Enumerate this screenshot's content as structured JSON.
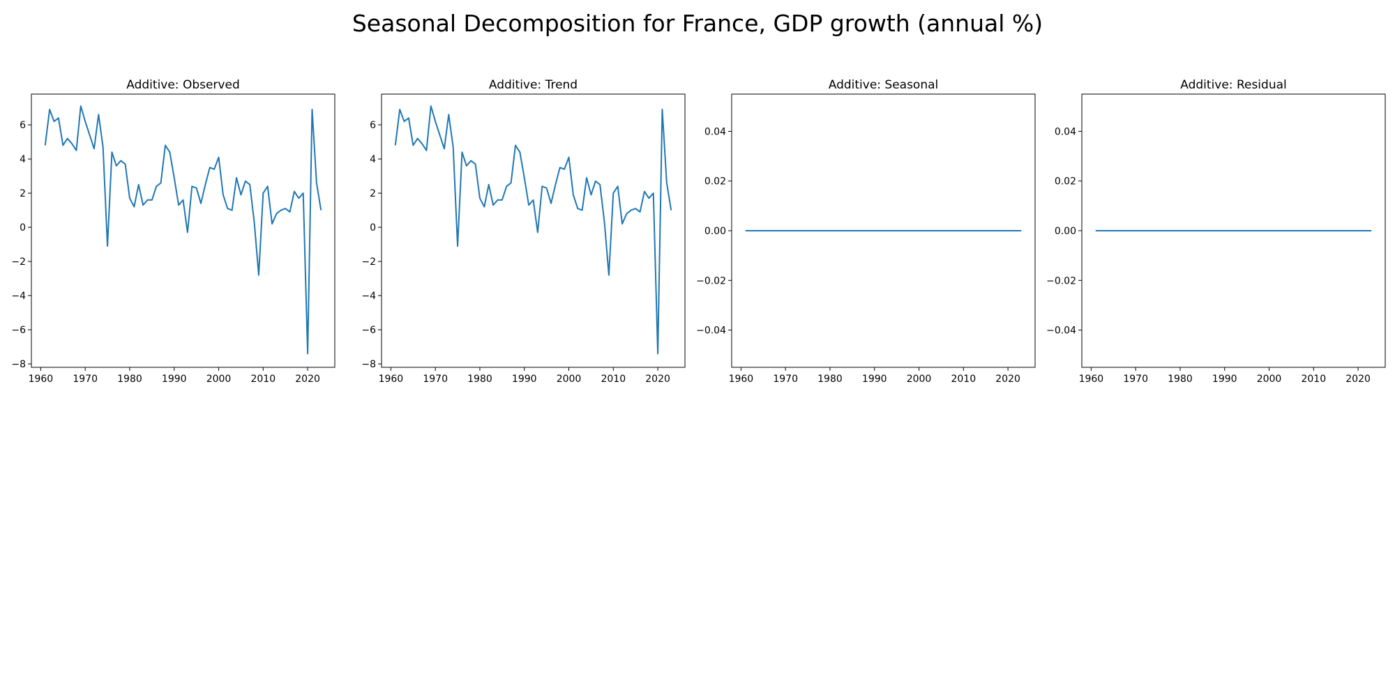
{
  "suptitle": "Seasonal Decomposition for France, GDP growth (annual %)",
  "chart_data": [
    {
      "type": "line",
      "title": "Additive: Observed",
      "xlim": [
        1957.9,
        2026.1
      ],
      "ylim": [
        -8.2,
        7.8
      ],
      "x_ticks": [
        1960,
        1970,
        1980,
        1990,
        2000,
        2010,
        2020
      ],
      "y_ticks": [
        -8,
        -6,
        -4,
        -2,
        0,
        2,
        4,
        6
      ],
      "color": "#1f77b4",
      "x": [
        1961,
        1962,
        1963,
        1964,
        1965,
        1966,
        1967,
        1968,
        1969,
        1970,
        1971,
        1972,
        1973,
        1974,
        1975,
        1976,
        1977,
        1978,
        1979,
        1980,
        1981,
        1982,
        1983,
        1984,
        1985,
        1986,
        1987,
        1988,
        1989,
        1990,
        1991,
        1992,
        1993,
        1994,
        1995,
        1996,
        1997,
        1998,
        1999,
        2000,
        2001,
        2002,
        2003,
        2004,
        2005,
        2006,
        2007,
        2008,
        2009,
        2010,
        2011,
        2012,
        2013,
        2014,
        2015,
        2016,
        2017,
        2018,
        2019,
        2020,
        2021,
        2022,
        2023
      ],
      "values": [
        4.8,
        6.9,
        6.2,
        6.4,
        4.8,
        5.2,
        4.9,
        4.5,
        7.1,
        6.2,
        5.4,
        4.6,
        6.6,
        4.7,
        -1.1,
        4.4,
        3.6,
        3.9,
        3.7,
        1.7,
        1.2,
        2.5,
        1.3,
        1.6,
        1.6,
        2.4,
        2.6,
        4.8,
        4.4,
        2.9,
        1.3,
        1.6,
        -0.3,
        2.4,
        2.3,
        1.4,
        2.5,
        3.5,
        3.4,
        4.1,
        1.9,
        1.1,
        1.0,
        2.9,
        1.9,
        2.7,
        2.5,
        0.3,
        -2.8,
        2.0,
        2.4,
        0.2,
        0.8,
        1.0,
        1.1,
        0.9,
        2.1,
        1.7,
        2.0,
        -7.4,
        6.9,
        2.6,
        1.0
      ]
    },
    {
      "type": "line",
      "title": "Additive: Trend",
      "xlim": [
        1957.9,
        2026.1
      ],
      "ylim": [
        -8.2,
        7.8
      ],
      "x_ticks": [
        1960,
        1970,
        1980,
        1990,
        2000,
        2010,
        2020
      ],
      "y_ticks": [
        -8,
        -6,
        -4,
        -2,
        0,
        2,
        4,
        6
      ],
      "color": "#1f77b4",
      "x": [
        1961,
        1962,
        1963,
        1964,
        1965,
        1966,
        1967,
        1968,
        1969,
        1970,
        1971,
        1972,
        1973,
        1974,
        1975,
        1976,
        1977,
        1978,
        1979,
        1980,
        1981,
        1982,
        1983,
        1984,
        1985,
        1986,
        1987,
        1988,
        1989,
        1990,
        1991,
        1992,
        1993,
        1994,
        1995,
        1996,
        1997,
        1998,
        1999,
        2000,
        2001,
        2002,
        2003,
        2004,
        2005,
        2006,
        2007,
        2008,
        2009,
        2010,
        2011,
        2012,
        2013,
        2014,
        2015,
        2016,
        2017,
        2018,
        2019,
        2020,
        2021,
        2022,
        2023
      ],
      "values": [
        4.8,
        6.9,
        6.2,
        6.4,
        4.8,
        5.2,
        4.9,
        4.5,
        7.1,
        6.2,
        5.4,
        4.6,
        6.6,
        4.7,
        -1.1,
        4.4,
        3.6,
        3.9,
        3.7,
        1.7,
        1.2,
        2.5,
        1.3,
        1.6,
        1.6,
        2.4,
        2.6,
        4.8,
        4.4,
        2.9,
        1.3,
        1.6,
        -0.3,
        2.4,
        2.3,
        1.4,
        2.5,
        3.5,
        3.4,
        4.1,
        1.9,
        1.1,
        1.0,
        2.9,
        1.9,
        2.7,
        2.5,
        0.3,
        -2.8,
        2.0,
        2.4,
        0.2,
        0.8,
        1.0,
        1.1,
        0.9,
        2.1,
        1.7,
        2.0,
        -7.4,
        6.9,
        2.6,
        1.0
      ]
    },
    {
      "type": "line",
      "title": "Additive: Seasonal",
      "xlim": [
        1957.9,
        2026.1
      ],
      "ylim": [
        -0.055,
        0.055
      ],
      "x_ticks": [
        1960,
        1970,
        1980,
        1990,
        2000,
        2010,
        2020
      ],
      "y_ticks": [
        -0.04,
        -0.02,
        0.0,
        0.02,
        0.04
      ],
      "y_tick_labels": [
        "−0.04",
        "−0.02",
        "0.00",
        "0.02",
        "0.04"
      ],
      "color": "#1f77b4",
      "x": [
        1961,
        2023
      ],
      "values": [
        0.0,
        0.0
      ]
    },
    {
      "type": "line",
      "title": "Additive: Residual",
      "xlim": [
        1957.9,
        2026.1
      ],
      "ylim": [
        -0.055,
        0.055
      ],
      "x_ticks": [
        1960,
        1970,
        1980,
        1990,
        2000,
        2010,
        2020
      ],
      "y_ticks": [
        -0.04,
        -0.02,
        0.0,
        0.02,
        0.04
      ],
      "y_tick_labels": [
        "−0.04",
        "−0.02",
        "0.00",
        "0.02",
        "0.04"
      ],
      "color": "#1f77b4",
      "x": [
        1961,
        2023
      ],
      "values": [
        0.0,
        0.0
      ]
    }
  ]
}
